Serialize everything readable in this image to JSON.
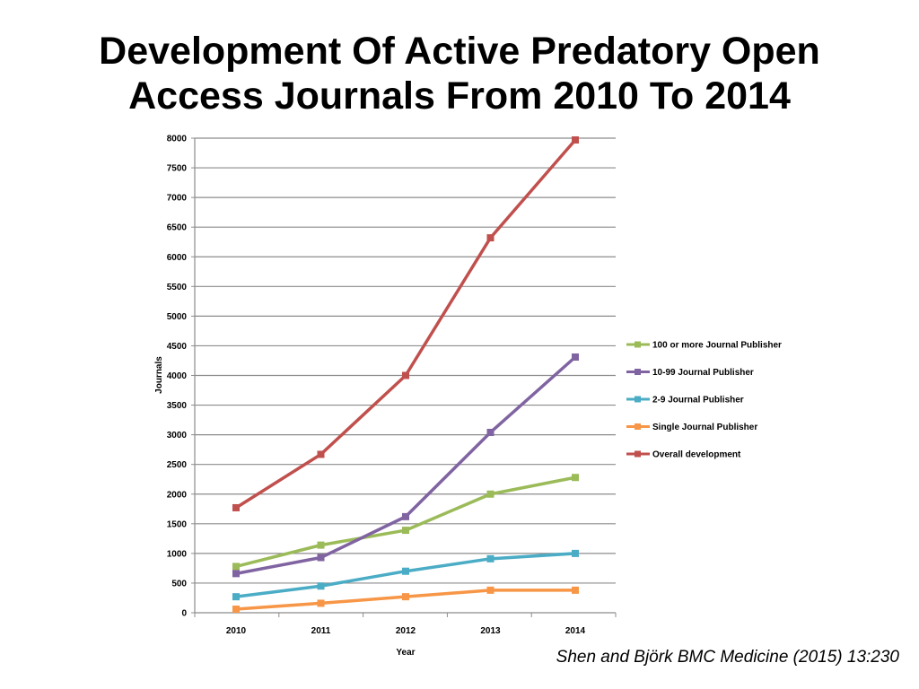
{
  "slide": {
    "title": "Development Of Active Predatory Open Access Journals From 2010 To 2014",
    "citation": "Shen and Björk BMC Medicine (2015) 13:230"
  },
  "chart_data": {
    "type": "line",
    "title": "",
    "xlabel": "Year",
    "ylabel": "Journals",
    "categories": [
      "2010",
      "2011",
      "2012",
      "2013",
      "2014"
    ],
    "ylim": [
      0,
      8000
    ],
    "yticks": [
      0,
      500,
      1000,
      1500,
      2000,
      2500,
      3000,
      3500,
      4000,
      4500,
      5000,
      5500,
      6000,
      6500,
      7000,
      7500,
      8000
    ],
    "grid": "horizontal",
    "legend_position": "right",
    "series": [
      {
        "name": "100 or more Journal Publisher",
        "color": "#9BBB59",
        "values": [
          780,
          1140,
          1390,
          2000,
          2280
        ]
      },
      {
        "name": "10-99 Journal Publisher",
        "color": "#8064A2",
        "values": [
          660,
          930,
          1620,
          3040,
          4310
        ]
      },
      {
        "name": "2-9 Journal Publisher",
        "color": "#4BACC6",
        "values": [
          270,
          450,
          700,
          910,
          1000
        ]
      },
      {
        "name": "Single Journal Publisher",
        "color": "#F79646",
        "values": [
          60,
          160,
          270,
          380,
          380
        ]
      },
      {
        "name": "Overall development",
        "color": "#C0504D",
        "values": [
          1770,
          2670,
          4000,
          6320,
          7970
        ]
      }
    ]
  }
}
